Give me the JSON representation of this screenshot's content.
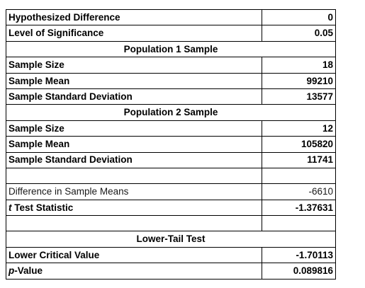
{
  "table": {
    "rows": [
      {
        "kind": "pair",
        "bold": true,
        "label": "Hypothesized Difference",
        "value": "0"
      },
      {
        "kind": "pair",
        "bold": true,
        "label": "Level of Significance",
        "value": "0.05"
      },
      {
        "kind": "section",
        "label": "Population 1 Sample"
      },
      {
        "kind": "pair",
        "bold": true,
        "label": "Sample Size",
        "value": "18"
      },
      {
        "kind": "pair",
        "bold": true,
        "label": "Sample Mean",
        "value": "99210"
      },
      {
        "kind": "pair",
        "bold": true,
        "label": "Sample Standard Deviation",
        "value": "13577"
      },
      {
        "kind": "section",
        "label": "Population 2 Sample"
      },
      {
        "kind": "pair",
        "bold": true,
        "label": "Sample Size",
        "value": "12"
      },
      {
        "kind": "pair",
        "bold": true,
        "label": "Sample Mean",
        "value": "105820"
      },
      {
        "kind": "pair",
        "bold": true,
        "label": "Sample Standard Deviation",
        "value": "11741"
      },
      {
        "kind": "blank"
      },
      {
        "kind": "pair",
        "bold": false,
        "label": "Difference in Sample Means",
        "value": "-6610"
      },
      {
        "kind": "pair",
        "bold": true,
        "italic_prefix": "t",
        "label": " Test Statistic",
        "value": "-1.37631"
      },
      {
        "kind": "blank"
      },
      {
        "kind": "section",
        "label": "Lower-Tail Test"
      },
      {
        "kind": "pair",
        "bold": true,
        "label": "Lower Critical Value",
        "value": "-1.70113"
      },
      {
        "kind": "pair",
        "bold": true,
        "italic_prefix": "p",
        "label": "-Value",
        "value": "0.089816"
      }
    ]
  }
}
